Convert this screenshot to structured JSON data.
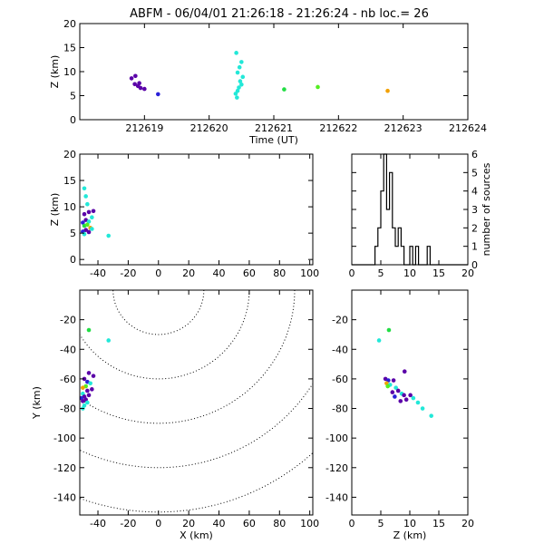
{
  "title": "ABFM - 06/04/01 21:26:18 - 21:26:24 - nb loc.=      26",
  "colors": {
    "violet": "#5a00a8",
    "blue": "#2a20d8",
    "cyan": "#22e8d8",
    "green": "#22dd44",
    "lime": "#55ee22",
    "orange": "#f2a000"
  },
  "chart_data": [
    {
      "id": "time_height",
      "type": "scatter",
      "xlabel": "Time (UT)",
      "ylabel": "Z (km)",
      "xlim": [
        212618,
        212624
      ],
      "ylim": [
        0,
        20
      ],
      "xticks": [
        212619,
        212620,
        212621,
        212622,
        212623,
        212624
      ],
      "xtick_labels": [
        "212619",
        "212620",
        "212621",
        "212622",
        "212623",
        "212624"
      ],
      "yticks": [
        0,
        5,
        10,
        15,
        20
      ],
      "ytick_labels": [
        "0",
        "5",
        "10",
        "15",
        "20"
      ],
      "points": [
        {
          "x": 212618.8,
          "y": 8.6,
          "c": "violet"
        },
        {
          "x": 212618.86,
          "y": 9.1,
          "c": "violet"
        },
        {
          "x": 212618.85,
          "y": 7.4,
          "c": "violet"
        },
        {
          "x": 212618.9,
          "y": 7.0,
          "c": "violet"
        },
        {
          "x": 212618.94,
          "y": 6.6,
          "c": "violet"
        },
        {
          "x": 212619.0,
          "y": 6.4,
          "c": "violet"
        },
        {
          "x": 212618.92,
          "y": 7.6,
          "c": "violet"
        },
        {
          "x": 212619.21,
          "y": 5.3,
          "c": "blue"
        },
        {
          "x": 212620.42,
          "y": 13.9,
          "c": "cyan"
        },
        {
          "x": 212620.5,
          "y": 12.0,
          "c": "cyan"
        },
        {
          "x": 212620.47,
          "y": 10.9,
          "c": "cyan"
        },
        {
          "x": 212620.44,
          "y": 9.8,
          "c": "cyan"
        },
        {
          "x": 212620.52,
          "y": 8.9,
          "c": "cyan"
        },
        {
          "x": 212620.48,
          "y": 8.0,
          "c": "cyan"
        },
        {
          "x": 212620.5,
          "y": 7.3,
          "c": "cyan"
        },
        {
          "x": 212620.46,
          "y": 6.7,
          "c": "cyan"
        },
        {
          "x": 212620.44,
          "y": 6.0,
          "c": "cyan"
        },
        {
          "x": 212620.41,
          "y": 5.4,
          "c": "cyan"
        },
        {
          "x": 212620.43,
          "y": 4.6,
          "c": "cyan"
        },
        {
          "x": 212621.16,
          "y": 6.3,
          "c": "green"
        },
        {
          "x": 212621.68,
          "y": 6.8,
          "c": "lime"
        },
        {
          "x": 212622.76,
          "y": 6.0,
          "c": "orange"
        }
      ]
    },
    {
      "id": "xz_projection",
      "type": "scatter",
      "xlabel": "",
      "ylabel": "Z (km)",
      "xlim": [
        -52,
        102
      ],
      "ylim": [
        -1,
        20
      ],
      "xticks": [
        -40,
        -20,
        0,
        20,
        40,
        60,
        80,
        100
      ],
      "xtick_labels": [
        "-40",
        "-20",
        "0",
        "20",
        "40",
        "60",
        "80",
        "100"
      ],
      "yticks": [
        0,
        5,
        10,
        15,
        20
      ],
      "ytick_labels": [
        "0",
        "5",
        "10",
        "15",
        "20"
      ],
      "points": [
        {
          "x": -49,
          "y": 13.5,
          "c": "cyan"
        },
        {
          "x": -48,
          "y": 12.0,
          "c": "cyan"
        },
        {
          "x": -47,
          "y": 10.5,
          "c": "cyan"
        },
        {
          "x": -46,
          "y": 9.0,
          "c": "violet"
        },
        {
          "x": -49,
          "y": 8.6,
          "c": "violet"
        },
        {
          "x": -43,
          "y": 9.2,
          "c": "violet"
        },
        {
          "x": -44,
          "y": 8.0,
          "c": "cyan"
        },
        {
          "x": -48,
          "y": 7.5,
          "c": "violet"
        },
        {
          "x": -50,
          "y": 7.0,
          "c": "blue"
        },
        {
          "x": -46,
          "y": 7.2,
          "c": "cyan"
        },
        {
          "x": -49,
          "y": 6.4,
          "c": "green"
        },
        {
          "x": -47,
          "y": 6.6,
          "c": "lime"
        },
        {
          "x": -45,
          "y": 6.0,
          "c": "orange"
        },
        {
          "x": -48,
          "y": 5.6,
          "c": "violet"
        },
        {
          "x": -50,
          "y": 5.3,
          "c": "blue"
        },
        {
          "x": -46,
          "y": 5.2,
          "c": "violet"
        },
        {
          "x": -44,
          "y": 5.8,
          "c": "cyan"
        },
        {
          "x": -49,
          "y": 4.8,
          "c": "cyan"
        },
        {
          "x": -33,
          "y": 4.5,
          "c": "cyan"
        }
      ]
    },
    {
      "id": "z_histogram",
      "type": "bar",
      "xlabel": "",
      "ylabel": "number of sources",
      "xlim": [
        0,
        20
      ],
      "ylim": [
        0,
        6
      ],
      "xticks": [
        0,
        5,
        10,
        15,
        20
      ],
      "xtick_labels": [
        "0",
        "5",
        "10",
        "15",
        "20"
      ],
      "yticks": [
        0,
        1,
        2,
        3,
        4,
        5,
        6
      ],
      "ytick_labels": [
        "0",
        "1",
        "2",
        "3",
        "4",
        "5",
        "6"
      ],
      "bin_edges": [
        0,
        4,
        4.5,
        5,
        5.5,
        6,
        6.5,
        7,
        7.5,
        8,
        8.5,
        9,
        9.5,
        10,
        10.5,
        11,
        11.5,
        12,
        12.5,
        13,
        13.5,
        14,
        20
      ],
      "values": [
        0,
        1,
        2,
        4,
        6,
        3,
        5,
        2,
        1,
        2,
        1,
        0,
        0,
        1,
        0,
        1,
        0,
        0,
        0,
        1,
        0,
        0
      ]
    },
    {
      "id": "xy_plan",
      "type": "scatter",
      "xlabel": "X (km)",
      "ylabel": "Y (km)",
      "xlim": [
        -52,
        102
      ],
      "ylim": [
        -152,
        0
      ],
      "xticks": [
        -40,
        -20,
        0,
        20,
        40,
        60,
        80,
        100
      ],
      "xtick_labels": [
        "-40",
        "-20",
        "0",
        "20",
        "40",
        "60",
        "80",
        "100"
      ],
      "yticks": [
        -20,
        -40,
        -60,
        -80,
        -100,
        -120,
        -140
      ],
      "ytick_labels": [
        "-20",
        "-40",
        "-60",
        "-80",
        "-100",
        "-120",
        "-140"
      ],
      "range_rings_center": [
        0,
        0
      ],
      "range_rings_radii": [
        30,
        60,
        90,
        120,
        150
      ],
      "points": [
        {
          "x": -46,
          "y": -27,
          "c": "green"
        },
        {
          "x": -33,
          "y": -34,
          "c": "cyan"
        },
        {
          "x": -46,
          "y": -56,
          "c": "violet"
        },
        {
          "x": -43,
          "y": -58,
          "c": "violet"
        },
        {
          "x": -49,
          "y": -60,
          "c": "violet"
        },
        {
          "x": -47,
          "y": -62,
          "c": "blue"
        },
        {
          "x": -45,
          "y": -63,
          "c": "cyan"
        },
        {
          "x": -48,
          "y": -65,
          "c": "lime"
        },
        {
          "x": -50,
          "y": -66,
          "c": "orange"
        },
        {
          "x": -44,
          "y": -67,
          "c": "violet"
        },
        {
          "x": -47,
          "y": -68,
          "c": "violet"
        },
        {
          "x": -50,
          "y": -70,
          "c": "cyan"
        },
        {
          "x": -46,
          "y": -71,
          "c": "violet"
        },
        {
          "x": -49,
          "y": -72,
          "c": "violet"
        },
        {
          "x": -51,
          "y": -73,
          "c": "blue"
        },
        {
          "x": -48,
          "y": -74,
          "c": "violet"
        },
        {
          "x": -50,
          "y": -75,
          "c": "violet"
        },
        {
          "x": -47,
          "y": -76,
          "c": "cyan"
        },
        {
          "x": -49,
          "y": -78,
          "c": "cyan"
        },
        {
          "x": -50,
          "y": -80,
          "c": "cyan"
        }
      ]
    },
    {
      "id": "zy_projection",
      "type": "scatter",
      "xlabel": "Z (km)",
      "ylabel": "",
      "xlim": [
        0,
        20
      ],
      "ylim": [
        -152,
        0
      ],
      "xticks": [
        0,
        5,
        10,
        15,
        20
      ],
      "xtick_labels": [
        "0",
        "5",
        "10",
        "15",
        "20"
      ],
      "yticks": [
        -20,
        -40,
        -60,
        -80,
        -100,
        -120,
        -140
      ],
      "ytick_labels": [
        "-20",
        "-40",
        "-60",
        "-80",
        "-100",
        "-120",
        "-140"
      ],
      "points": [
        {
          "x": 6.4,
          "y": -27,
          "c": "green"
        },
        {
          "x": 4.7,
          "y": -34,
          "c": "cyan"
        },
        {
          "x": 9.1,
          "y": -55,
          "c": "violet"
        },
        {
          "x": 5.8,
          "y": -60,
          "c": "violet"
        },
        {
          "x": 6.3,
          "y": -61,
          "c": "blue"
        },
        {
          "x": 7.2,
          "y": -61,
          "c": "violet"
        },
        {
          "x": 6.0,
          "y": -63,
          "c": "orange"
        },
        {
          "x": 6.6,
          "y": -64,
          "c": "cyan"
        },
        {
          "x": 6.2,
          "y": -65,
          "c": "lime"
        },
        {
          "x": 7.6,
          "y": -66,
          "c": "cyan"
        },
        {
          "x": 8.0,
          "y": -68,
          "c": "violet"
        },
        {
          "x": 7.0,
          "y": -69,
          "c": "violet"
        },
        {
          "x": 8.6,
          "y": -70,
          "c": "cyan"
        },
        {
          "x": 9.0,
          "y": -71,
          "c": "violet"
        },
        {
          "x": 10.1,
          "y": -71,
          "c": "violet"
        },
        {
          "x": 7.4,
          "y": -72,
          "c": "blue"
        },
        {
          "x": 10.6,
          "y": -73,
          "c": "cyan"
        },
        {
          "x": 9.4,
          "y": -74,
          "c": "violet"
        },
        {
          "x": 8.4,
          "y": -75,
          "c": "violet"
        },
        {
          "x": 11.4,
          "y": -76,
          "c": "cyan"
        },
        {
          "x": 12.2,
          "y": -80,
          "c": "cyan"
        },
        {
          "x": 13.7,
          "y": -85,
          "c": "cyan"
        }
      ]
    }
  ]
}
